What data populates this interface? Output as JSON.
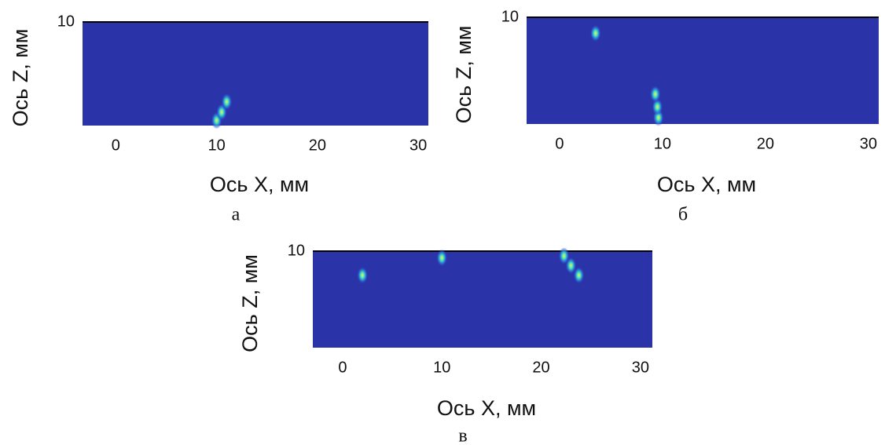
{
  "chart_data": [
    {
      "type": "heatmap",
      "xlabel": "Ось X, мм",
      "ylabel": "Ось Z, мм",
      "caption": "а",
      "xlim": [
        -3.3,
        31
      ],
      "ylim": [
        0,
        10
      ],
      "xticks": [
        0,
        10,
        20,
        30
      ],
      "yticks": [
        10
      ],
      "peaks": [
        {
          "x": 10,
          "z": 0.5
        },
        {
          "x": 10.5,
          "z": 1.3
        },
        {
          "x": 11,
          "z": 2.3
        }
      ]
    },
    {
      "type": "heatmap",
      "xlabel": "Ось X, мм",
      "ylabel": "Ось Z, мм",
      "caption": "б",
      "xlim": [
        -3.2,
        31
      ],
      "ylim": [
        0,
        10
      ],
      "xticks": [
        0,
        10,
        20,
        30
      ],
      "yticks": [
        10
      ],
      "peaks": [
        {
          "x": 9.6,
          "z": 0.6
        },
        {
          "x": 9.5,
          "z": 1.6
        },
        {
          "x": 9.3,
          "z": 2.8
        },
        {
          "x": 3.5,
          "z": 8.5
        }
      ]
    },
    {
      "type": "heatmap",
      "xlabel": "Ось X, мм",
      "ylabel": "Ось Z, мм",
      "caption": "в",
      "xlim": [
        -3,
        31.2
      ],
      "ylim": [
        0,
        10
      ],
      "xticks": [
        0,
        10,
        20,
        30
      ],
      "yticks": [
        10
      ],
      "peaks": [
        {
          "x": 22.3,
          "z": 9.5
        },
        {
          "x": 23,
          "z": 8.5
        },
        {
          "x": 23.8,
          "z": 7.5
        },
        {
          "x": 10,
          "z": 9.3
        },
        {
          "x": 2,
          "z": 7.5
        }
      ]
    }
  ]
}
